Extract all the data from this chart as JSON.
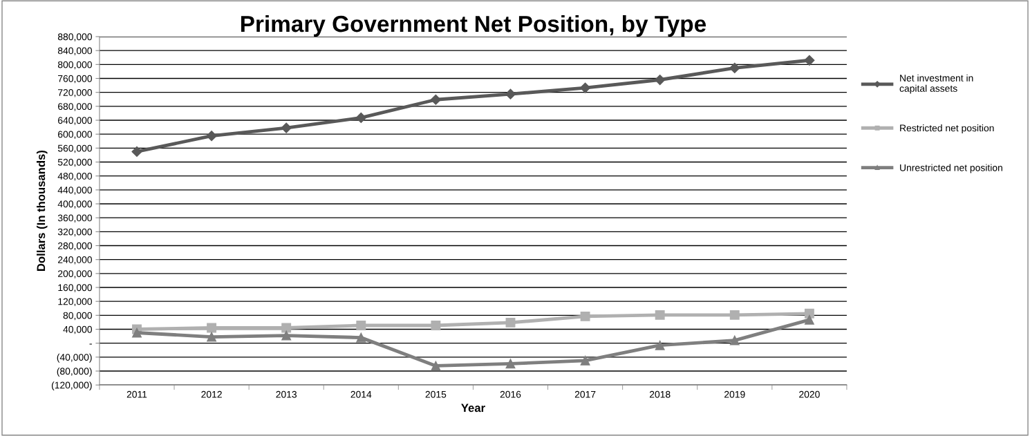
{
  "chart_data": {
    "type": "line",
    "title": "Primary Government Net Position, by Type",
    "xlabel": "Year",
    "ylabel": "Dollars (In thousands)",
    "categories": [
      "2011",
      "2012",
      "2013",
      "2014",
      "2015",
      "2016",
      "2017",
      "2018",
      "2019",
      "2020"
    ],
    "series": [
      {
        "name": "Net investment in\ncapital assets",
        "color": "#595959",
        "marker": "diamond",
        "values": [
          550000,
          595000,
          618000,
          647000,
          699000,
          715000,
          733000,
          756000,
          790000,
          812000
        ]
      },
      {
        "name": "Restricted net position",
        "color": "#b0b0b0",
        "marker": "square",
        "values": [
          40000,
          44000,
          44000,
          51000,
          51000,
          59000,
          77000,
          81000,
          81000,
          85000
        ]
      },
      {
        "name": "Unrestricted net position",
        "color": "#7f7f7f",
        "marker": "triangle",
        "values": [
          30000,
          18000,
          22000,
          16000,
          -65000,
          -59000,
          -50000,
          -6000,
          8000,
          67000
        ]
      }
    ],
    "ylim": [
      -120000,
      880000
    ],
    "yticks": [
      {
        "value": -120000,
        "label": "(120,000)"
      },
      {
        "value": -80000,
        "label": "(80,000)"
      },
      {
        "value": -40000,
        "label": "(40,000)"
      },
      {
        "value": 0,
        "label": "-"
      },
      {
        "value": 40000,
        "label": "40,000"
      },
      {
        "value": 80000,
        "label": "80,000"
      },
      {
        "value": 120000,
        "label": "120,000"
      },
      {
        "value": 160000,
        "label": "160,000"
      },
      {
        "value": 200000,
        "label": "200,000"
      },
      {
        "value": 240000,
        "label": "240,000"
      },
      {
        "value": 280000,
        "label": "280,000"
      },
      {
        "value": 320000,
        "label": "320,000"
      },
      {
        "value": 360000,
        "label": "360,000"
      },
      {
        "value": 400000,
        "label": "400,000"
      },
      {
        "value": 440000,
        "label": "440,000"
      },
      {
        "value": 480000,
        "label": "480,000"
      },
      {
        "value": 520000,
        "label": "520,000"
      },
      {
        "value": 560000,
        "label": "560,000"
      },
      {
        "value": 600000,
        "label": "600,000"
      },
      {
        "value": 640000,
        "label": "640,000"
      },
      {
        "value": 680000,
        "label": "680,000"
      },
      {
        "value": 720000,
        "label": "720,000"
      },
      {
        "value": 760000,
        "label": "760,000"
      },
      {
        "value": 800000,
        "label": "800,000"
      },
      {
        "value": 840000,
        "label": "840,000"
      },
      {
        "value": 880000,
        "label": "880,000"
      }
    ],
    "grid": "y",
    "legend": "right",
    "line_style": "solid"
  }
}
